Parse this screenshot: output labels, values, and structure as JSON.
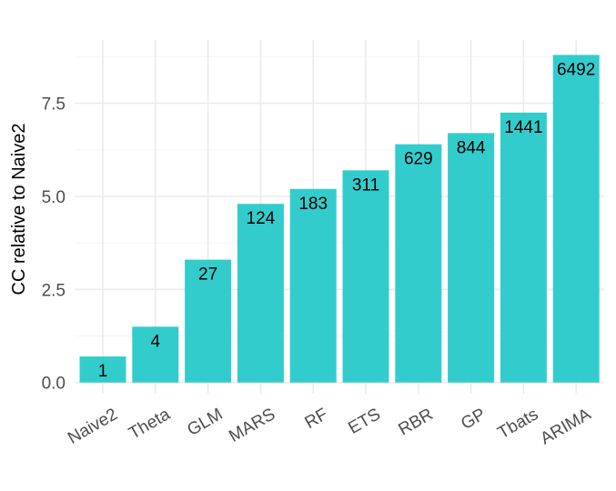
{
  "chart_data": {
    "type": "bar",
    "title": "",
    "xlabel": "",
    "ylabel": "CC relative to Naive2",
    "categories": [
      "Naive2",
      "Theta",
      "GLM",
      "MARS",
      "RF",
      "ETS",
      "RBR",
      "GP",
      "Tbats",
      "ARIMA"
    ],
    "values": [
      0.7,
      1.5,
      3.3,
      4.8,
      5.2,
      5.7,
      6.4,
      6.7,
      7.25,
      8.8
    ],
    "data_labels": [
      "1",
      "4",
      "27",
      "124",
      "183",
      "311",
      "629",
      "844",
      "1441",
      "6492"
    ],
    "y_ticks": [
      0,
      2.5,
      5,
      7.5
    ],
    "y_tick_labels": [
      "0.0",
      "2.5",
      "5.0",
      "7.5"
    ],
    "ylim": [
      -0.3,
      9.2
    ],
    "bar_color": "#33cccc",
    "grid": true,
    "legend": "none"
  }
}
